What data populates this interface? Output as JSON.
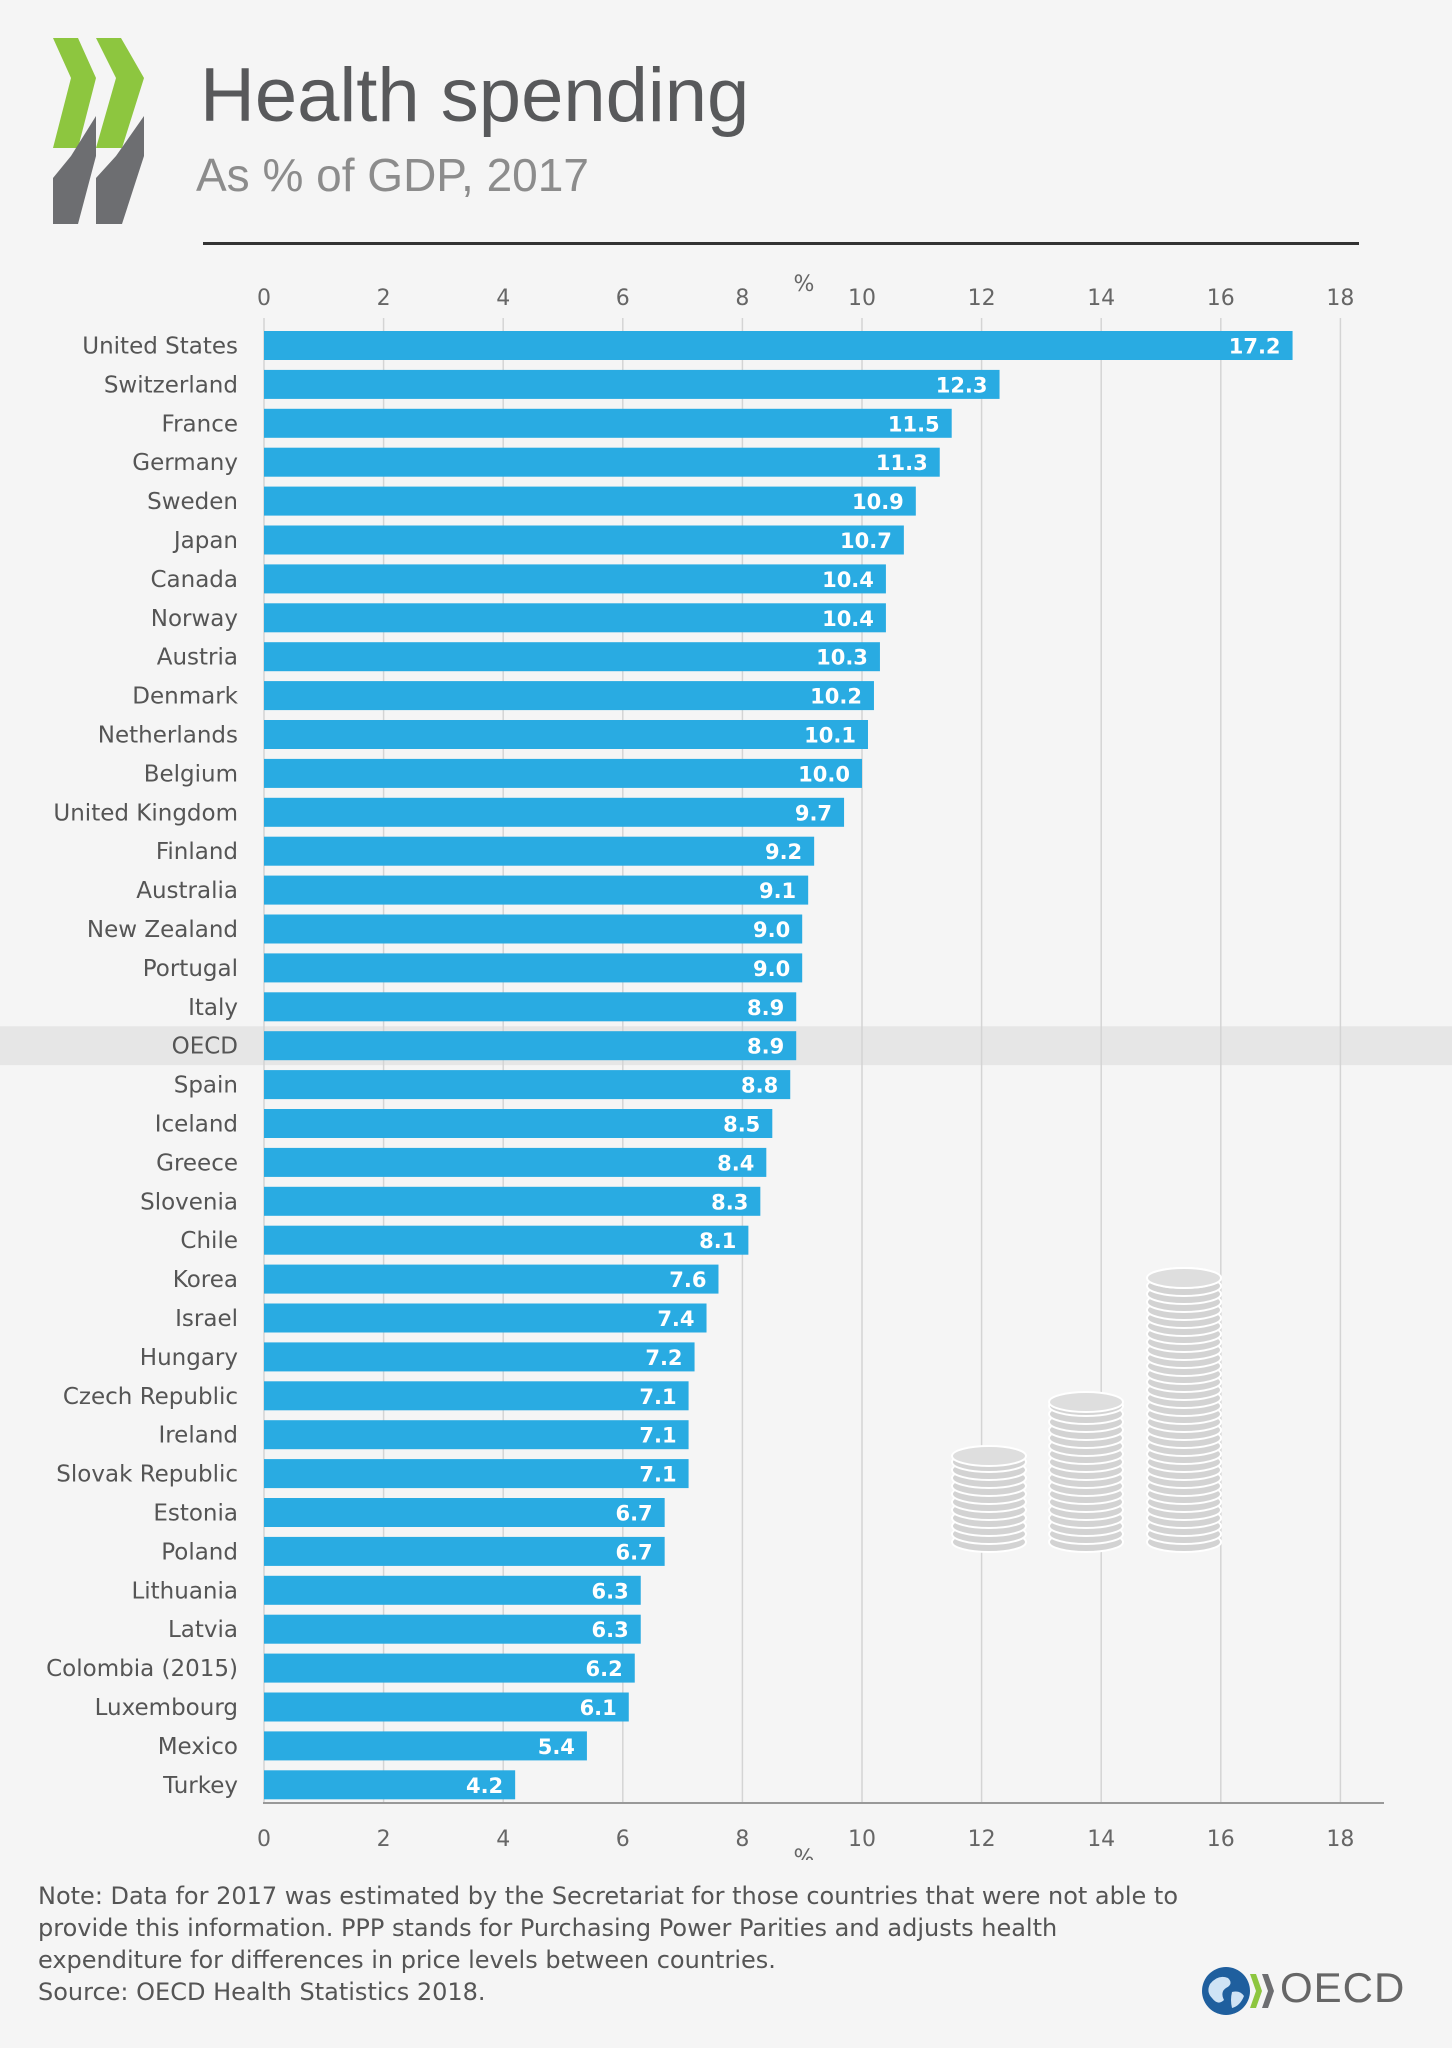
{
  "header": {
    "title": "Health spending",
    "subtitle": "As % of GDP, 2017"
  },
  "colors": {
    "bar": "#29abe2",
    "highlight_row": "#e6e6e6",
    "logo_green": "#8dc63f",
    "logo_grey": "#6d6e71"
  },
  "icons": {
    "logo": "oecd-chevrons-icon",
    "decoration": "coin-stacks-icon",
    "globe": "globe-icon"
  },
  "chart_data": {
    "type": "bar",
    "orientation": "horizontal",
    "title": "Health spending",
    "subtitle": "As % of GDP, 2017",
    "xlabel": "%",
    "xlim": [
      0,
      18
    ],
    "xticks": [
      0,
      2,
      4,
      6,
      8,
      10,
      12,
      14,
      16,
      18
    ],
    "grid": true,
    "highlighted_category": "OECD",
    "categories": [
      "United States",
      "Switzerland",
      "France",
      "Germany",
      "Sweden",
      "Japan",
      "Canada",
      "Norway",
      "Austria",
      "Denmark",
      "Netherlands",
      "Belgium",
      "United Kingdom",
      "Finland",
      "Australia",
      "New Zealand",
      "Portugal",
      "Italy",
      "OECD",
      "Spain",
      "Iceland",
      "Greece",
      "Slovenia",
      "Chile",
      "Korea",
      "Israel",
      "Hungary",
      "Czech Republic",
      "Ireland",
      "Slovak Republic",
      "Estonia",
      "Poland",
      "Lithuania",
      "Latvia",
      "Colombia (2015)",
      "Luxembourg",
      "Mexico",
      "Turkey"
    ],
    "values": [
      17.2,
      12.3,
      11.5,
      11.3,
      10.9,
      10.7,
      10.4,
      10.4,
      10.3,
      10.2,
      10.1,
      10.0,
      9.7,
      9.2,
      9.1,
      9.0,
      9.0,
      8.9,
      8.9,
      8.8,
      8.5,
      8.4,
      8.3,
      8.1,
      7.6,
      7.4,
      7.2,
      7.1,
      7.1,
      7.1,
      6.7,
      6.7,
      6.3,
      6.3,
      6.2,
      6.1,
      5.4,
      4.2
    ],
    "value_labels": [
      "17.2",
      "12.3",
      "11.5",
      "11.3",
      "10.9",
      "10.7",
      "10.4",
      "10.4",
      "10.3",
      "10.2",
      "10.1",
      "10.0",
      "9.7",
      "9.2",
      "9.1",
      "9.0",
      "9.0",
      "8.9",
      "8.9",
      "8.8",
      "8.5",
      "8.4",
      "8.3",
      "8.1",
      "7.6",
      "7.4",
      "7.2",
      "7.1",
      "7.1",
      "7.1",
      "6.7",
      "6.7",
      "6.3",
      "6.3",
      "6.2",
      "6.1",
      "5.4",
      "4.2"
    ]
  },
  "note": "Note: Data for 2017 was estimated by the Secretariat for those countries that were not able to provide this information. PPP stands for Purchasing Power Parities and adjusts health expenditure for differences in price levels between countries.",
  "source": "Source: OECD Health Statistics 2018.",
  "footer": {
    "logo_text": "OECD"
  }
}
